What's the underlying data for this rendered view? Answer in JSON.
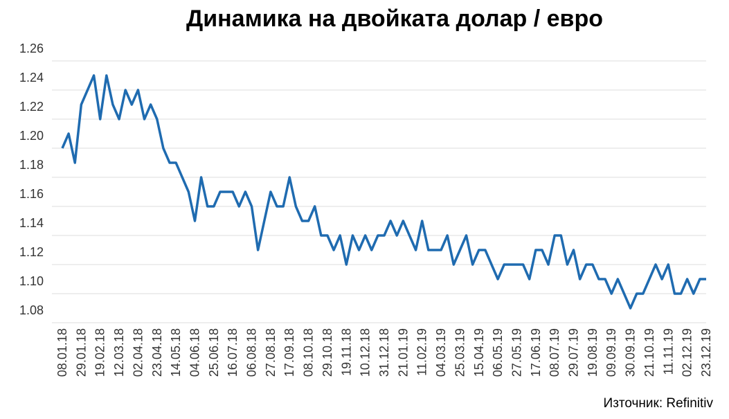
{
  "chart_data": {
    "type": "line",
    "title": "Динамика на двойката долар / евро",
    "source": "Източник: Refinitiv",
    "categories": [
      "08.01.18",
      null,
      null,
      "29.01.18",
      null,
      null,
      "19.02.18",
      null,
      null,
      "12.03.18",
      null,
      null,
      "02.04.18",
      null,
      null,
      "23.04.18",
      null,
      null,
      "14.05.18",
      null,
      null,
      "04.06.18",
      null,
      null,
      "25.06.18",
      null,
      null,
      "16.07.18",
      null,
      null,
      "06.08.18",
      null,
      null,
      "27.08.18",
      null,
      null,
      "17.09.18",
      null,
      null,
      "08.10.18",
      null,
      null,
      "29.10.18",
      null,
      null,
      "19.11.18",
      null,
      null,
      "10.12.18",
      null,
      null,
      "31.12.18",
      null,
      null,
      "21.01.19",
      null,
      null,
      "11.02.19",
      null,
      null,
      "04.03.19",
      null,
      null,
      "25.03.19",
      null,
      null,
      "15.04.19",
      null,
      null,
      "06.05.19",
      null,
      null,
      "27.05.19",
      null,
      null,
      "17.06.19",
      null,
      null,
      "08.07.19",
      null,
      null,
      "29.07.19",
      null,
      null,
      "19.08.19",
      null,
      null,
      "09.09.19",
      null,
      null,
      "30.09.19",
      null,
      null,
      "21.10.19",
      null,
      null,
      "11.11.19",
      null,
      null,
      "02.12.19",
      null,
      null,
      "23.12.19"
    ],
    "values": [
      1.2,
      1.21,
      1.19,
      1.23,
      1.24,
      1.25,
      1.22,
      1.25,
      1.23,
      1.22,
      1.24,
      1.23,
      1.24,
      1.22,
      1.23,
      1.22,
      1.2,
      1.19,
      1.19,
      1.18,
      1.17,
      1.15,
      1.18,
      1.16,
      1.16,
      1.17,
      1.17,
      1.17,
      1.16,
      1.17,
      1.16,
      1.13,
      1.15,
      1.17,
      1.16,
      1.16,
      1.18,
      1.16,
      1.15,
      1.15,
      1.16,
      1.14,
      1.14,
      1.13,
      1.14,
      1.12,
      1.14,
      1.13,
      1.14,
      1.13,
      1.14,
      1.14,
      1.15,
      1.14,
      1.15,
      1.14,
      1.13,
      1.15,
      1.13,
      1.13,
      1.13,
      1.14,
      1.12,
      1.13,
      1.14,
      1.12,
      1.13,
      1.13,
      1.12,
      1.11,
      1.12,
      1.12,
      1.12,
      1.12,
      1.11,
      1.13,
      1.13,
      1.12,
      1.14,
      1.14,
      1.12,
      1.13,
      1.11,
      1.12,
      1.12,
      1.11,
      1.11,
      1.1,
      1.11,
      1.1,
      1.09,
      1.1,
      1.1,
      1.11,
      1.12,
      1.11,
      1.12,
      1.1,
      1.1,
      1.11,
      1.1,
      1.11,
      1.11
    ],
    "color": "#1f6bb0",
    "ylim": [
      1.08,
      1.26
    ],
    "yticks": [
      1.08,
      {
        "value": 1.1,
        "label": "1.10"
      },
      1.12,
      1.14,
      1.16,
      1.18,
      {
        "value": 1.2,
        "label": "1.20"
      },
      1.22,
      1.24,
      1.26
    ],
    "grid": true
  }
}
